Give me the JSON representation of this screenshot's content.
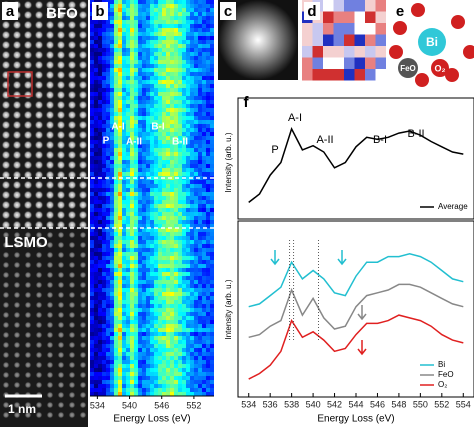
{
  "panel_a": {
    "label": "a",
    "top_label": "BFO",
    "bottom_label": "LSMO",
    "scale_bar": "1 nm"
  },
  "panel_b": {
    "label": "b",
    "peak_labels": [
      "A-I",
      "B-I",
      "P",
      "A-II",
      "B-II"
    ],
    "xlim": [
      533,
      555
    ],
    "xticks": [
      534,
      540,
      546,
      552
    ],
    "xlabel": "Energy Loss (eV)"
  },
  "panel_c": {
    "label": "c"
  },
  "panel_d": {
    "label": "d"
  },
  "panel_e": {
    "label": "e",
    "atoms": [
      "Bi",
      "FeO",
      "O₂"
    ]
  },
  "panel_f": {
    "label": "f"
  },
  "chart_data": [
    {
      "type": "line",
      "ylabel": "Intensity (arb. u.)",
      "annotations": [
        "P",
        "A-I",
        "A-II",
        "B-I",
        "B-II"
      ],
      "x": [
        534,
        535,
        536,
        537,
        538,
        539,
        540,
        541,
        542,
        543,
        544,
        545,
        546,
        547,
        548,
        549,
        550,
        551,
        552,
        553,
        554
      ],
      "series": [
        {
          "name": "Average",
          "color": "#000000",
          "values": [
            0.12,
            0.2,
            0.38,
            0.5,
            0.82,
            0.62,
            0.66,
            0.6,
            0.45,
            0.5,
            0.65,
            0.74,
            0.72,
            0.74,
            0.78,
            0.8,
            0.76,
            0.7,
            0.65,
            0.6,
            0.58
          ]
        }
      ],
      "xlim": [
        533,
        555
      ],
      "ylim": [
        0,
        1
      ],
      "legend": "lower right"
    },
    {
      "type": "line",
      "ylabel": "Intensity (arb. u.)",
      "xlabel": "Energy Loss (eV)",
      "x": [
        534,
        535,
        536,
        537,
        538,
        539,
        540,
        541,
        542,
        543,
        544,
        545,
        546,
        547,
        548,
        549,
        550,
        551,
        552,
        553,
        554
      ],
      "series": [
        {
          "name": "Bi",
          "color": "#22bfd0",
          "values": [
            1.55,
            1.6,
            1.75,
            1.9,
            2.35,
            2.05,
            2.2,
            2.05,
            1.8,
            1.75,
            2.1,
            2.35,
            2.35,
            2.45,
            2.45,
            2.5,
            2.45,
            2.35,
            2.2,
            2.05,
            2.0
          ]
        },
        {
          "name": "FeO",
          "color": "#888888",
          "values": [
            1.0,
            1.05,
            1.2,
            1.3,
            1.85,
            1.4,
            1.7,
            1.35,
            1.15,
            1.2,
            1.55,
            1.75,
            1.8,
            1.85,
            1.95,
            1.95,
            1.9,
            1.8,
            1.7,
            1.6,
            1.55
          ]
        },
        {
          "name": "O₂",
          "color": "#e02020",
          "values": [
            0.25,
            0.35,
            0.5,
            0.75,
            1.3,
            1.0,
            1.1,
            0.95,
            0.75,
            0.8,
            1.05,
            1.25,
            1.25,
            1.3,
            1.4,
            1.35,
            1.3,
            1.2,
            1.05,
            0.95,
            0.9
          ]
        }
      ],
      "xlim": [
        533,
        555
      ],
      "ylim": [
        0,
        3
      ],
      "xticks": [
        534,
        536,
        538,
        540,
        542,
        544,
        546,
        548,
        550,
        552,
        554
      ],
      "legend": "lower right"
    }
  ]
}
